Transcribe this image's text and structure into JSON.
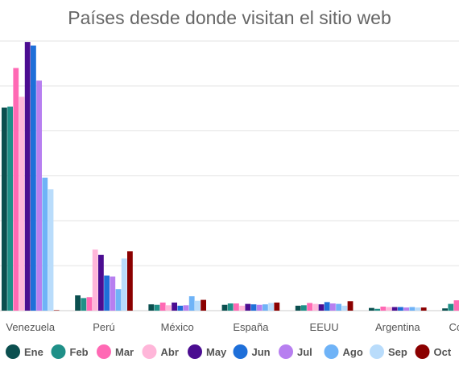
{
  "chart_data": {
    "type": "bar",
    "title": "Países desde donde visitan el sitio web",
    "xlabel": "",
    "ylabel": "",
    "ylim": [
      0,
      3000
    ],
    "grid": true,
    "legend_position": "bottom",
    "categories": [
      "Venezuela",
      "Perú",
      "México",
      "España",
      "EEUU",
      "Argentina",
      "Colombia"
    ],
    "series": [
      {
        "name": "Ene",
        "color": "#0b4f4f",
        "values": [
          2260,
          170,
          70,
          65,
          55,
          30,
          25
        ]
      },
      {
        "name": "Feb",
        "color": "#1f9088",
        "values": [
          2270,
          140,
          65,
          80,
          60,
          20,
          75
        ]
      },
      {
        "name": "Mar",
        "color": "#ff69b4",
        "values": [
          2700,
          150,
          90,
          80,
          85,
          45,
          115
        ]
      },
      {
        "name": "Abr",
        "color": "#ffb6d9",
        "values": [
          2380,
          680,
          60,
          55,
          75,
          40,
          85
        ]
      },
      {
        "name": "May",
        "color": "#4b0d91",
        "values": [
          2990,
          620,
          90,
          75,
          70,
          40,
          75
        ]
      },
      {
        "name": "Jun",
        "color": "#1e6fd9",
        "values": [
          2950,
          390,
          55,
          70,
          95,
          40,
          95
        ]
      },
      {
        "name": "Jul",
        "color": "#b77ff0",
        "values": [
          2560,
          380,
          60,
          65,
          80,
          35,
          85
        ]
      },
      {
        "name": "Ago",
        "color": "#6fb3f7",
        "values": [
          1480,
          240,
          160,
          70,
          75,
          40,
          95
        ]
      },
      {
        "name": "Sep",
        "color": "#b9dcfb",
        "values": [
          1350,
          580,
          110,
          85,
          55,
          35,
          75
        ]
      },
      {
        "name": "Oct",
        "color": "#8b0000",
        "values": [
          5,
          660,
          120,
          90,
          105,
          35,
          60
        ]
      }
    ]
  }
}
